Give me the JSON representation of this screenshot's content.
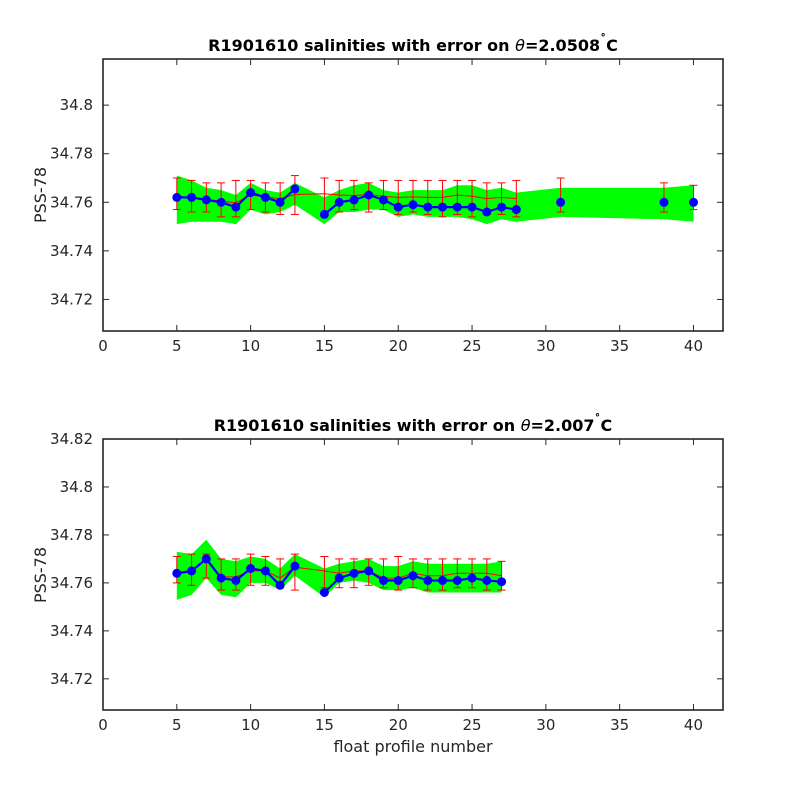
{
  "chart_data": [
    {
      "type": "line",
      "title": "R1901610 salinities with error on θ=2.0508˚C",
      "title_parts": {
        "prefix": "R1901610 salinities with error on ",
        "symbol": "θ",
        "value": "=2.0508",
        "degree": "˚",
        "unit": "C"
      },
      "xlabel": "",
      "ylabel": "PSS-78",
      "xlim": [
        0,
        42
      ],
      "ylim": [
        34.707,
        34.819
      ],
      "xticks": [
        0,
        5,
        10,
        15,
        20,
        25,
        30,
        35,
        40
      ],
      "yticks": [
        34.72,
        34.74,
        34.76,
        34.78,
        34.8
      ],
      "ytick_labels": [
        "34.72",
        "34.74",
        "34.76",
        "34.78",
        "34.8"
      ],
      "grid": false,
      "colors": {
        "band": "#00ff00",
        "mapped": "#ff0000",
        "float": "#0000ff",
        "axes": "#262626"
      },
      "band": {
        "x": [
          5,
          6,
          7,
          8,
          9,
          10,
          11,
          12,
          13,
          15,
          16,
          17,
          18,
          19,
          20,
          21,
          22,
          23,
          24,
          25,
          26,
          27,
          28,
          31,
          38,
          40
        ],
        "upper": [
          34.771,
          34.769,
          34.766,
          34.765,
          34.763,
          34.768,
          34.765,
          34.764,
          34.768,
          34.762,
          34.765,
          34.767,
          34.768,
          34.765,
          34.764,
          34.765,
          34.765,
          34.765,
          34.767,
          34.767,
          34.765,
          34.766,
          34.764,
          34.766,
          34.766,
          34.767
        ],
        "lower": [
          34.751,
          34.752,
          34.752,
          34.752,
          34.751,
          34.757,
          34.755,
          34.756,
          34.759,
          34.751,
          34.756,
          34.756,
          34.757,
          34.757,
          34.754,
          34.755,
          34.754,
          34.754,
          34.754,
          34.753,
          34.751,
          34.753,
          34.752,
          34.754,
          34.753,
          34.752
        ]
      },
      "mapped": {
        "x": [
          5,
          6,
          7,
          8,
          9,
          10,
          11,
          12,
          13,
          15,
          16,
          17,
          18,
          19,
          20,
          21,
          22,
          23,
          24,
          25,
          26,
          27,
          28
        ],
        "y": [
          34.7625,
          34.7618,
          34.7612,
          34.7605,
          34.7598,
          34.763,
          34.7622,
          34.7615,
          34.7632,
          34.7635,
          34.763,
          34.7628,
          34.7632,
          34.7625,
          34.762,
          34.7622,
          34.762,
          34.762,
          34.763,
          34.7625,
          34.7615,
          34.762,
          34.7615
        ],
        "err_low": [
          34.757,
          34.756,
          34.756,
          34.754,
          34.754,
          34.757,
          34.756,
          34.755,
          34.755,
          34.755,
          34.756,
          34.757,
          34.756,
          34.757,
          34.755,
          34.756,
          34.755,
          34.754,
          34.755,
          34.754,
          34.755,
          34.755,
          34.754
        ],
        "err_high": [
          34.77,
          34.769,
          34.768,
          34.768,
          34.769,
          34.769,
          34.768,
          34.768,
          34.771,
          34.77,
          34.769,
          34.769,
          34.768,
          34.769,
          34.769,
          34.769,
          34.769,
          34.769,
          34.769,
          34.769,
          34.768,
          34.768,
          34.769
        ],
        "x_extra": [
          31,
          38,
          40
        ],
        "err_low_extra": [
          34.756,
          34.756,
          34.757
        ],
        "err_high_extra": [
          34.77,
          34.768,
          34.767
        ]
      },
      "series": [
        {
          "x": [
            5,
            6,
            7,
            8,
            9,
            10,
            11,
            12,
            13
          ],
          "y": [
            34.762,
            34.762,
            34.761,
            34.76,
            34.758,
            34.764,
            34.762,
            34.76,
            34.7655
          ],
          "connected": true
        },
        {
          "x": [
            15,
            16,
            17,
            18,
            19,
            20,
            21,
            22,
            23,
            24,
            25,
            26,
            27,
            28
          ],
          "y": [
            34.755,
            34.76,
            34.761,
            34.763,
            34.761,
            34.758,
            34.759,
            34.758,
            34.758,
            34.758,
            34.758,
            34.756,
            34.758,
            34.757
          ],
          "connected": true
        },
        {
          "x": [
            31,
            38,
            40
          ],
          "y": [
            34.76,
            34.76,
            34.76
          ],
          "connected": false
        }
      ]
    },
    {
      "type": "line",
      "title": "R1901610 salinities with error on θ=2.007˚C",
      "title_parts": {
        "prefix": "R1901610 salinities with error on ",
        "symbol": "θ",
        "value": "=2.007",
        "degree": "˚",
        "unit": "C"
      },
      "xlabel": "float profile number",
      "ylabel": "PSS-78",
      "xlim": [
        0,
        42
      ],
      "ylim": [
        34.707,
        34.82
      ],
      "xticks": [
        0,
        5,
        10,
        15,
        20,
        25,
        30,
        35,
        40
      ],
      "yticks": [
        34.72,
        34.74,
        34.76,
        34.78,
        34.8,
        34.82
      ],
      "ytick_labels": [
        "34.72",
        "34.74",
        "34.76",
        "34.78",
        "34.8",
        "34.82"
      ],
      "grid": false,
      "colors": {
        "band": "#00ff00",
        "mapped": "#ff0000",
        "float": "#0000ff",
        "axes": "#262626"
      },
      "band": {
        "x": [
          5,
          6,
          7,
          8,
          9,
          10,
          11,
          12,
          13,
          15,
          16,
          17,
          18,
          19,
          20,
          21,
          22,
          23,
          24,
          25,
          26,
          27
        ],
        "upper": [
          34.773,
          34.772,
          34.778,
          34.77,
          34.769,
          34.771,
          34.77,
          34.766,
          34.772,
          34.766,
          34.768,
          34.769,
          34.77,
          34.767,
          34.767,
          34.769,
          34.768,
          34.768,
          34.768,
          34.768,
          34.768,
          34.769
        ],
        "lower": [
          34.753,
          34.755,
          34.762,
          34.755,
          34.754,
          34.76,
          34.76,
          34.757,
          34.763,
          34.754,
          34.76,
          34.761,
          34.76,
          34.757,
          34.757,
          34.758,
          34.756,
          34.756,
          34.756,
          34.756,
          34.756,
          34.756
        ]
      },
      "mapped": {
        "x": [
          5,
          6,
          7,
          8,
          9,
          10,
          11,
          12,
          13,
          15,
          16,
          17,
          18,
          19,
          20,
          21,
          22,
          23,
          24,
          25,
          26,
          27
        ],
        "y": [
          34.7638,
          34.7645,
          34.77,
          34.7625,
          34.7625,
          34.765,
          34.765,
          34.762,
          34.7665,
          34.765,
          34.764,
          34.765,
          34.765,
          34.762,
          34.762,
          34.764,
          34.763,
          34.763,
          34.764,
          34.764,
          34.764,
          34.763
        ],
        "err_low": [
          34.76,
          34.759,
          34.762,
          34.757,
          34.757,
          34.759,
          34.759,
          34.758,
          34.757,
          34.758,
          34.758,
          34.758,
          34.759,
          34.758,
          34.757,
          34.758,
          34.757,
          34.757,
          34.758,
          34.758,
          34.757,
          34.757
        ],
        "err_high": [
          34.771,
          34.772,
          34.772,
          34.77,
          34.77,
          34.772,
          34.771,
          34.77,
          34.772,
          34.771,
          34.77,
          34.77,
          34.77,
          34.77,
          34.771,
          34.77,
          34.77,
          34.77,
          34.77,
          34.77,
          34.77,
          34.769
        ]
      },
      "series": [
        {
          "x": [
            5,
            6,
            7,
            8,
            9,
            10,
            11,
            12,
            13
          ],
          "y": [
            34.764,
            34.765,
            34.77,
            34.762,
            34.761,
            34.766,
            34.765,
            34.759,
            34.767
          ],
          "connected": true
        },
        {
          "x": [
            15,
            16,
            17,
            18,
            19,
            20,
            21,
            22,
            23,
            24,
            25,
            26,
            27
          ],
          "y": [
            34.756,
            34.762,
            34.764,
            34.765,
            34.761,
            34.761,
            34.763,
            34.761,
            34.761,
            34.761,
            34.762,
            34.761,
            34.7605
          ],
          "connected": true
        }
      ]
    }
  ]
}
